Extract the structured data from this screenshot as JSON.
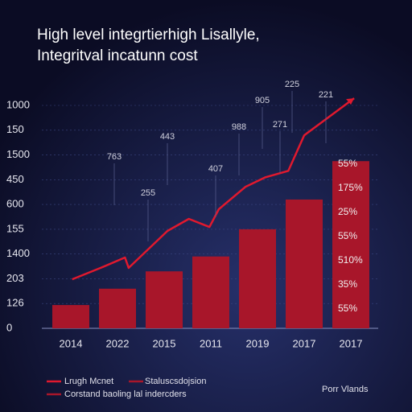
{
  "chart_data": {
    "type": "bar",
    "title": "High level integrtierhigh Lisallyle,",
    "subtitle": "Integritval incatunn cost",
    "categories": [
      "2014",
      "2022",
      "2015",
      "2011",
      "2019",
      "2017",
      "2017"
    ],
    "values": [
      0.94,
      1.6,
      2.3,
      2.9,
      4.0,
      5.2,
      6.75
    ],
    "color": "#a8162a",
    "ylim": [
      0,
      9
    ],
    "y_labels": [
      "0",
      "126",
      "203",
      "1400",
      "155",
      "600",
      "450",
      "1500",
      "150",
      "1000"
    ],
    "line": {
      "name": "Lrugh Mcnet",
      "color": "#e0192e",
      "x": [
        0.03,
        0.64,
        1.16,
        1.24,
        2.07,
        2.53,
        2.97,
        3.17,
        3.74,
        4.17,
        4.66,
        5.0,
        6.07
      ],
      "values": [
        1.98,
        2.44,
        2.86,
        2.44,
        3.93,
        4.42,
        4.09,
        4.81,
        5.71,
        6.1,
        6.36,
        7.79,
        9.29
      ]
    },
    "value_annotations": [
      "55%",
      "175%",
      "25%",
      "55%",
      "510%",
      "35%",
      "55%"
    ],
    "annotations": [
      "225",
      "905",
      "221",
      "988",
      "271",
      "443",
      "763",
      "407",
      "255"
    ],
    "legend": [
      "Staluscsdojsion",
      "Corstand baoling lal indercders"
    ],
    "source": "Porr Vlands"
  }
}
